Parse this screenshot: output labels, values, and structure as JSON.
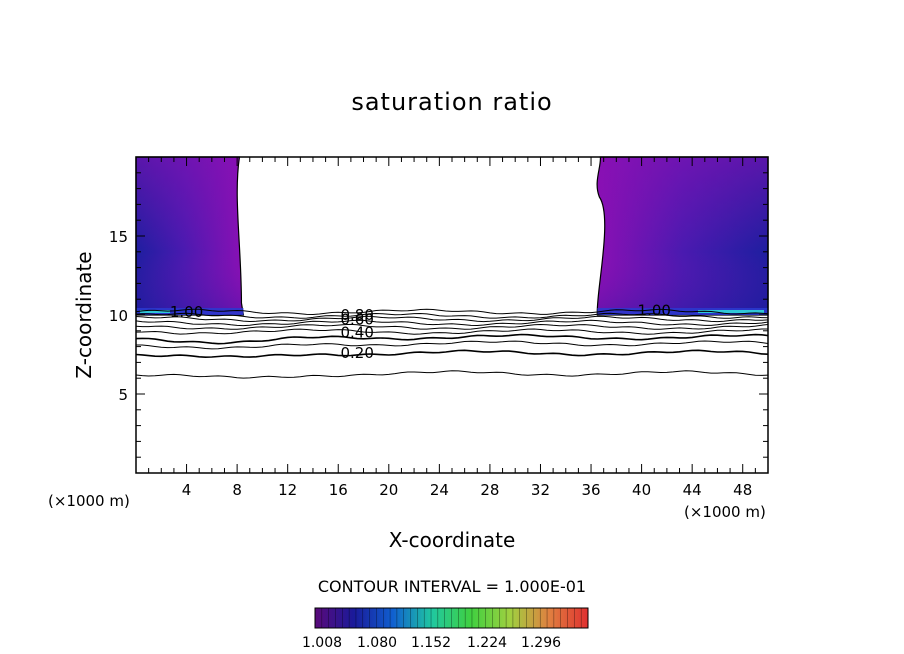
{
  "chart_data": {
    "type": "contour",
    "title": "saturation ratio",
    "xlabel": "X-coordinate",
    "ylabel": "Z-coordinate",
    "x_unit_label": "(×1000 m)",
    "x_unit_label_right": "(×1000 m)",
    "xlim": [
      0,
      50
    ],
    "ylim": [
      0,
      20
    ],
    "xticks": [
      4,
      8,
      12,
      16,
      20,
      24,
      28,
      32,
      36,
      40,
      44,
      48
    ],
    "yticks": [
      5,
      10,
      15
    ],
    "contour_interval_text": "CONTOUR INTERVAL = 1.000E-01",
    "contour_labels": [
      {
        "text": "1.00",
        "x": 4.0,
        "z": 10.2
      },
      {
        "text": "1.00",
        "x": 41.0,
        "z": 10.3
      },
      {
        "text": "0.80",
        "x": 17.5,
        "z": 10.0
      },
      {
        "text": "0.60",
        "x": 17.5,
        "z": 9.7
      },
      {
        "text": "0.40",
        "x": 17.5,
        "z": 8.9
      },
      {
        "text": "0.20",
        "x": 17.5,
        "z": 7.6
      }
    ],
    "contour_lines": [
      {
        "level": 1.0,
        "z": 10.2
      },
      {
        "level": 0.9,
        "z": 9.95
      },
      {
        "level": 0.8,
        "z": 9.75
      },
      {
        "level": 0.7,
        "z": 9.5
      },
      {
        "level": 0.6,
        "z": 9.25
      },
      {
        "level": 0.5,
        "z": 8.95
      },
      {
        "level": 0.4,
        "z": 8.6
      },
      {
        "level": 0.3,
        "z": 8.2
      },
      {
        "level": 0.2,
        "z": 7.6
      },
      {
        "level": 0.1,
        "z": 6.3
      }
    ],
    "supersaturated_regions": [
      {
        "name": "left",
        "x_range": [
          0,
          8.5
        ],
        "z_range": [
          10,
          20
        ]
      },
      {
        "name": "right",
        "x_range": [
          36.5,
          50
        ],
        "z_range": [
          10,
          20
        ]
      }
    ],
    "colorbar": {
      "ticks": [
        "1.008",
        "1.080",
        "1.152",
        "1.224",
        "1.296"
      ],
      "colors": [
        "#5a0a7a",
        "#1a1a9a",
        "#1060d0",
        "#20c8a0",
        "#40d040",
        "#a0d040",
        "#e08040",
        "#e03030"
      ]
    },
    "colors": {
      "purple": "#8a10b4",
      "dark_blue": "#1e1e9e",
      "mid_blue": "#2a3ad0",
      "cyan": "#30c8d8"
    }
  }
}
